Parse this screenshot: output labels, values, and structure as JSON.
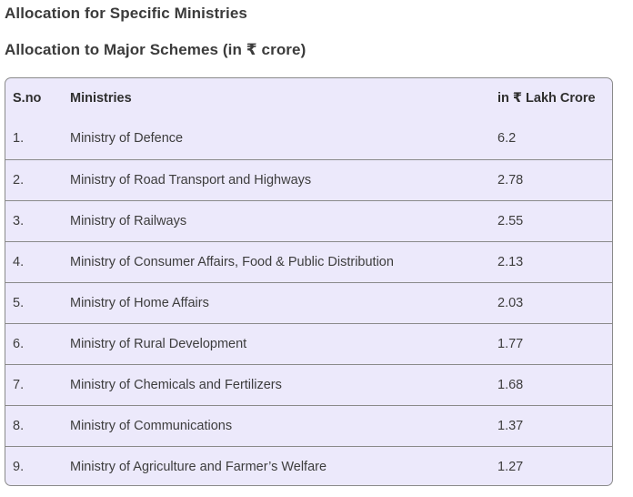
{
  "headings": {
    "title": "Allocation for Specific Ministries",
    "subtitle": "Allocation to Major Schemes (in ₹ crore)"
  },
  "table": {
    "headers": {
      "sno": "S.no",
      "ministry": "Ministries",
      "value": "in ₹ Lakh Crore"
    },
    "rows": [
      {
        "sno": "1.",
        "ministry": "Ministry of Defence",
        "value": "6.2"
      },
      {
        "sno": "2.",
        "ministry": "Ministry of Road Transport and Highways",
        "value": "2.78"
      },
      {
        "sno": "3.",
        "ministry": "Ministry of Railways",
        "value": "2.55"
      },
      {
        "sno": "4.",
        "ministry": "Ministry of Consumer Affairs, Food & Public Distribution",
        "value": "2.13"
      },
      {
        "sno": "5.",
        "ministry": "Ministry of Home Affairs",
        "value": "2.03"
      },
      {
        "sno": "6.",
        "ministry": "Ministry of Rural Development",
        "value": "1.77"
      },
      {
        "sno": "7.",
        "ministry": "Ministry of Chemicals and Fertilizers",
        "value": "1.68"
      },
      {
        "sno": "8.",
        "ministry": "Ministry of Communications",
        "value": "1.37"
      },
      {
        "sno": "9.",
        "ministry": "Ministry of Agriculture and Farmer’s Welfare",
        "value": "1.27"
      }
    ]
  },
  "colors": {
    "table_background": "#ece9fb",
    "border": "#8a8a8a",
    "text": "#3d3d3d"
  }
}
